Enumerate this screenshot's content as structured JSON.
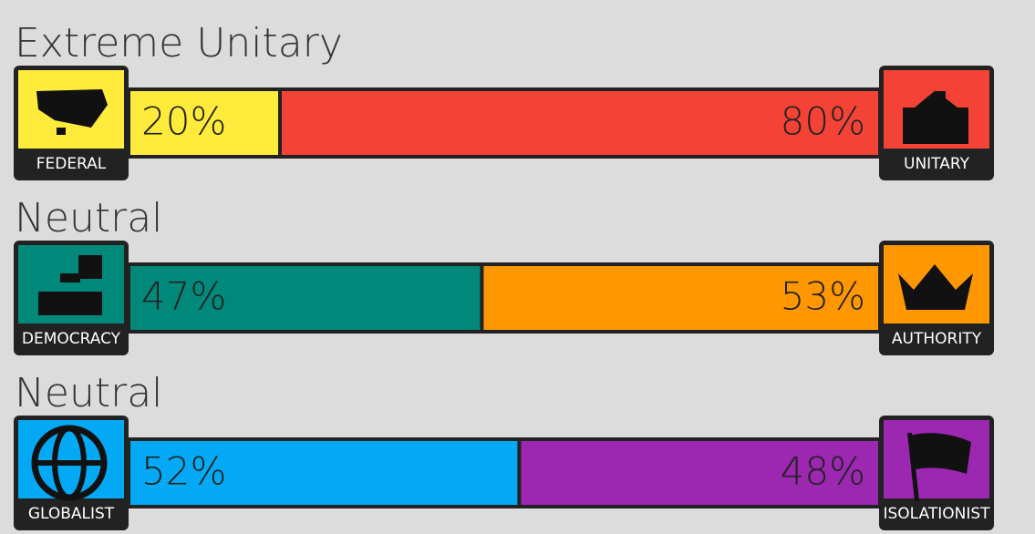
{
  "axes": [
    {
      "label": "Extreme Unitary",
      "left": {
        "name": "FEDERAL",
        "value": 20,
        "value_label": "20%",
        "color": "#ffeb3b"
      },
      "right": {
        "name": "UNITARY",
        "value": 80,
        "value_label": "80%",
        "color": "#f44336"
      }
    },
    {
      "label": "Neutral",
      "left": {
        "name": "DEMOCRACY",
        "value": 47,
        "value_label": "47%",
        "color": "#00897b"
      },
      "right": {
        "name": "AUTHORITY",
        "value": 53,
        "value_label": "53%",
        "color": "#ff9800"
      }
    },
    {
      "label": "Neutral",
      "left": {
        "name": "GLOBALIST",
        "value": 52,
        "value_label": "52%",
        "color": "#03a9f4"
      },
      "right": {
        "name": "ISOLATIONIST",
        "value": 48,
        "value_label": "48%",
        "color": "#9c27b0"
      }
    }
  ]
}
